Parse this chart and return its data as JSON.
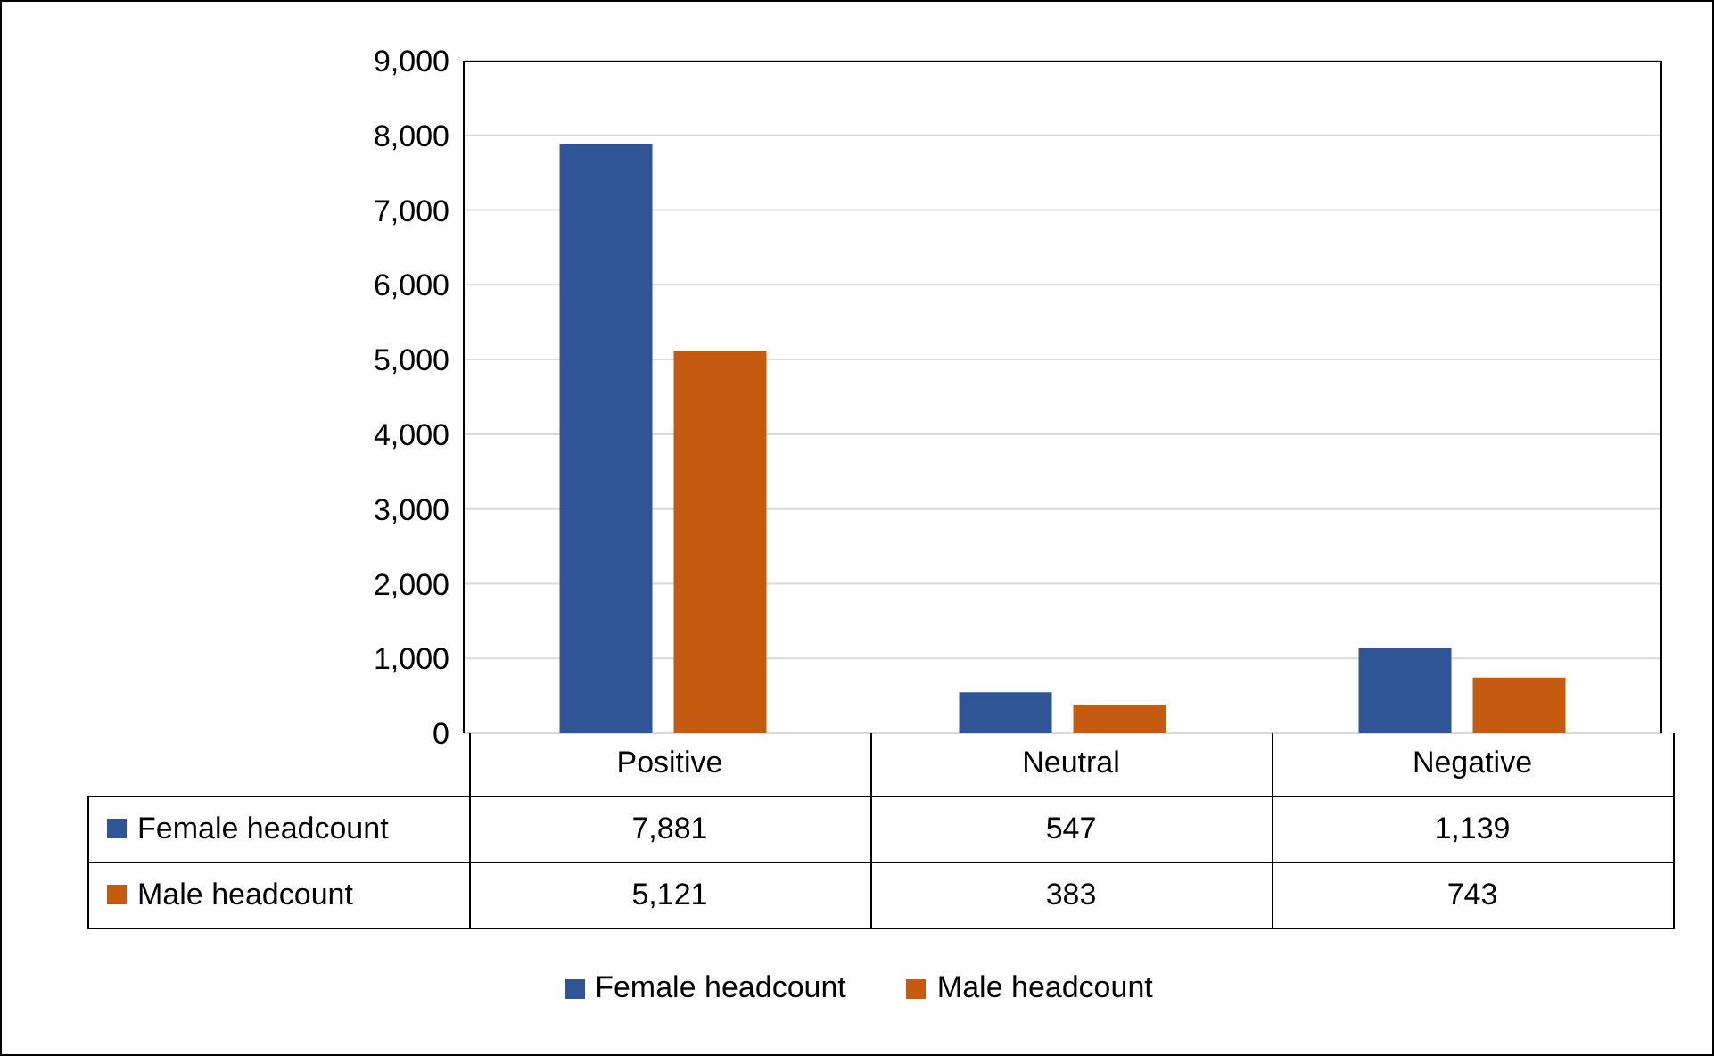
{
  "chart_data": {
    "type": "bar",
    "categories": [
      "Positive",
      "Neutral",
      "Negative"
    ],
    "series": [
      {
        "name": "Female headcount",
        "color": "#2f5597",
        "values": [
          7881,
          547,
          1139
        ],
        "value_labels": [
          "7,881",
          "547",
          "1,139"
        ]
      },
      {
        "name": "Male headcount",
        "color": "#c55a11",
        "values": [
          5121,
          383,
          743
        ],
        "value_labels": [
          "5,121",
          "383",
          "743"
        ]
      }
    ],
    "ylim": [
      0,
      9000
    ],
    "yticks": [
      0,
      {
        "value": 1000,
        "label": "1,000"
      },
      {
        "value": 2000,
        "label": "2,000"
      },
      {
        "value": 3000,
        "label": "3,000"
      },
      {
        "value": 4000,
        "label": "4,000"
      },
      {
        "value": 5000,
        "label": "5,000"
      },
      {
        "value": 6000,
        "label": "6,000"
      },
      {
        "value": 7000,
        "label": "7,000"
      },
      {
        "value": 8000,
        "label": "8,000"
      },
      {
        "value": 9000,
        "label": "9,000"
      }
    ],
    "grid": "y",
    "legend": "bottom"
  }
}
